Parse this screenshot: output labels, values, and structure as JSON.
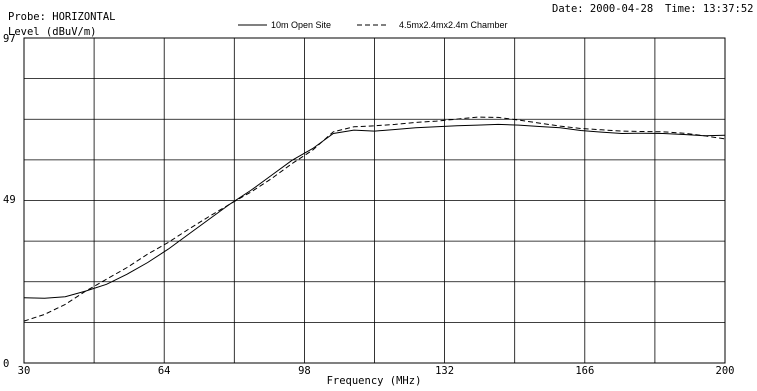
{
  "header": {
    "probe": "Probe: HORIZONTAL",
    "level": "Level (dBuV/m)",
    "date": "Date: 2000-04-28",
    "time": "Time: 13:37:52"
  },
  "chart_data": {
    "type": "line",
    "xlabel": "Frequency (MHz)",
    "ylabel": "Level (dBuV/m)",
    "xlim": [
      30,
      200
    ],
    "ylim": [
      0,
      97
    ],
    "x_ticks": [
      30,
      64,
      98,
      132,
      166,
      200
    ],
    "y_ticks": [
      0,
      49,
      97
    ],
    "grid": true,
    "legend_position": "top",
    "series": [
      {
        "name": "10m Open Site",
        "style": "solid",
        "color": "#000000",
        "x": [
          30,
          35,
          40,
          45,
          50,
          55,
          60,
          65,
          70,
          75,
          80,
          85,
          90,
          95,
          100,
          105,
          110,
          115,
          120,
          125,
          130,
          135,
          140,
          145,
          150,
          155,
          160,
          165,
          170,
          175,
          180,
          185,
          190,
          195,
          200
        ],
        "y": [
          19.5,
          19.3,
          19.8,
          21.5,
          23.5,
          26.5,
          30,
          34,
          38.5,
          43,
          47.5,
          51.5,
          56,
          60.5,
          64,
          68.5,
          69.5,
          69.2,
          69.7,
          70.2,
          70.5,
          70.8,
          71,
          71.2,
          71,
          70.6,
          70.2,
          69.4,
          68.9,
          68.5,
          68.6,
          68.5,
          68.2,
          67.8,
          68
        ]
      },
      {
        "name": "4.5mx2.4mx2.4m Chamber",
        "style": "dashed",
        "color": "#000000",
        "x": [
          30,
          35,
          40,
          45,
          50,
          55,
          60,
          65,
          70,
          75,
          80,
          85,
          90,
          95,
          100,
          105,
          110,
          115,
          120,
          125,
          130,
          135,
          140,
          145,
          150,
          155,
          160,
          165,
          170,
          175,
          180,
          185,
          190,
          195,
          200
        ],
        "y": [
          12.5,
          14.5,
          17.5,
          21.5,
          25,
          28.5,
          32.5,
          36,
          40,
          43.8,
          47.5,
          51,
          55,
          59.5,
          63.5,
          69,
          70.5,
          70.8,
          71.2,
          71.8,
          72.2,
          72.8,
          73.4,
          73.3,
          72.5,
          71.6,
          70.7,
          70,
          69.6,
          69.2,
          69.1,
          69,
          68.6,
          67.8,
          66.9
        ]
      }
    ]
  }
}
